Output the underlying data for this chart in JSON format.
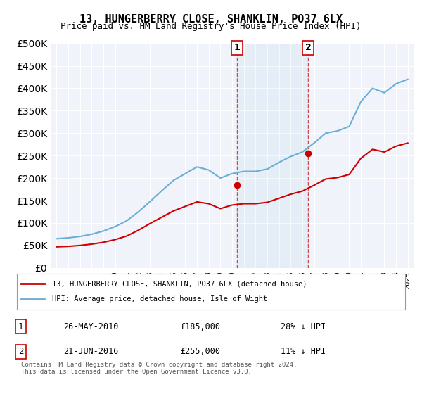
{
  "title": "13, HUNGERBERRY CLOSE, SHANKLIN, PO37 6LX",
  "subtitle": "Price paid vs. HM Land Registry's House Price Index (HPI)",
  "hpi_color": "#6baed6",
  "price_color": "#cc0000",
  "dashed_color": "#cc0000",
  "background_color": "#f0f4fa",
  "plot_bg_color": "#f0f4fa",
  "legend_label_price": "13, HUNGERBERRY CLOSE, SHANKLIN, PO37 6LX (detached house)",
  "legend_label_hpi": "HPI: Average price, detached house, Isle of Wight",
  "transaction1_label": "1",
  "transaction1_date": "26-MAY-2010",
  "transaction1_price": "£185,000",
  "transaction1_hpi": "28% ↓ HPI",
  "transaction2_label": "2",
  "transaction2_date": "21-JUN-2016",
  "transaction2_price": "£255,000",
  "transaction2_hpi": "11% ↓ HPI",
  "footer": "Contains HM Land Registry data © Crown copyright and database right 2024.\nThis data is licensed under the Open Government Licence v3.0.",
  "ylim": [
    0,
    500000
  ],
  "yticks": [
    0,
    50000,
    100000,
    150000,
    200000,
    250000,
    300000,
    350000,
    400000,
    450000,
    500000
  ],
  "marker1_year": 2010.4,
  "marker1_value": 185000,
  "marker2_year": 2016.5,
  "marker2_value": 255000,
  "hpi_years": [
    1995,
    1996,
    1997,
    1998,
    1999,
    2000,
    2001,
    2002,
    2003,
    2004,
    2005,
    2006,
    2007,
    2008,
    2009,
    2010,
    2011,
    2012,
    2013,
    2014,
    2015,
    2016,
    2017,
    2018,
    2019,
    2020,
    2021,
    2022,
    2023,
    2024,
    2025
  ],
  "hpi_values": [
    65000,
    67000,
    70000,
    75000,
    82000,
    92000,
    105000,
    125000,
    148000,
    172000,
    195000,
    210000,
    225000,
    218000,
    200000,
    210000,
    215000,
    215000,
    220000,
    235000,
    248000,
    258000,
    278000,
    300000,
    305000,
    315000,
    370000,
    400000,
    390000,
    410000,
    420000
  ],
  "price_years": [
    1995,
    1996,
    1997,
    1998,
    1999,
    2000,
    2001,
    2002,
    2003,
    2004,
    2005,
    2006,
    2007,
    2008,
    2009,
    2010,
    2011,
    2012,
    2013,
    2014,
    2015,
    2016,
    2017,
    2018,
    2019,
    2020,
    2021,
    2022,
    2023,
    2024,
    2025
  ],
  "price_values": [
    47000,
    48000,
    50000,
    53000,
    57000,
    63000,
    71000,
    84000,
    99000,
    113000,
    127000,
    137000,
    147000,
    143000,
    132000,
    140000,
    143000,
    143000,
    146000,
    155000,
    164000,
    171000,
    184000,
    198000,
    201000,
    208000,
    244000,
    264000,
    258000,
    271000,
    278000
  ]
}
